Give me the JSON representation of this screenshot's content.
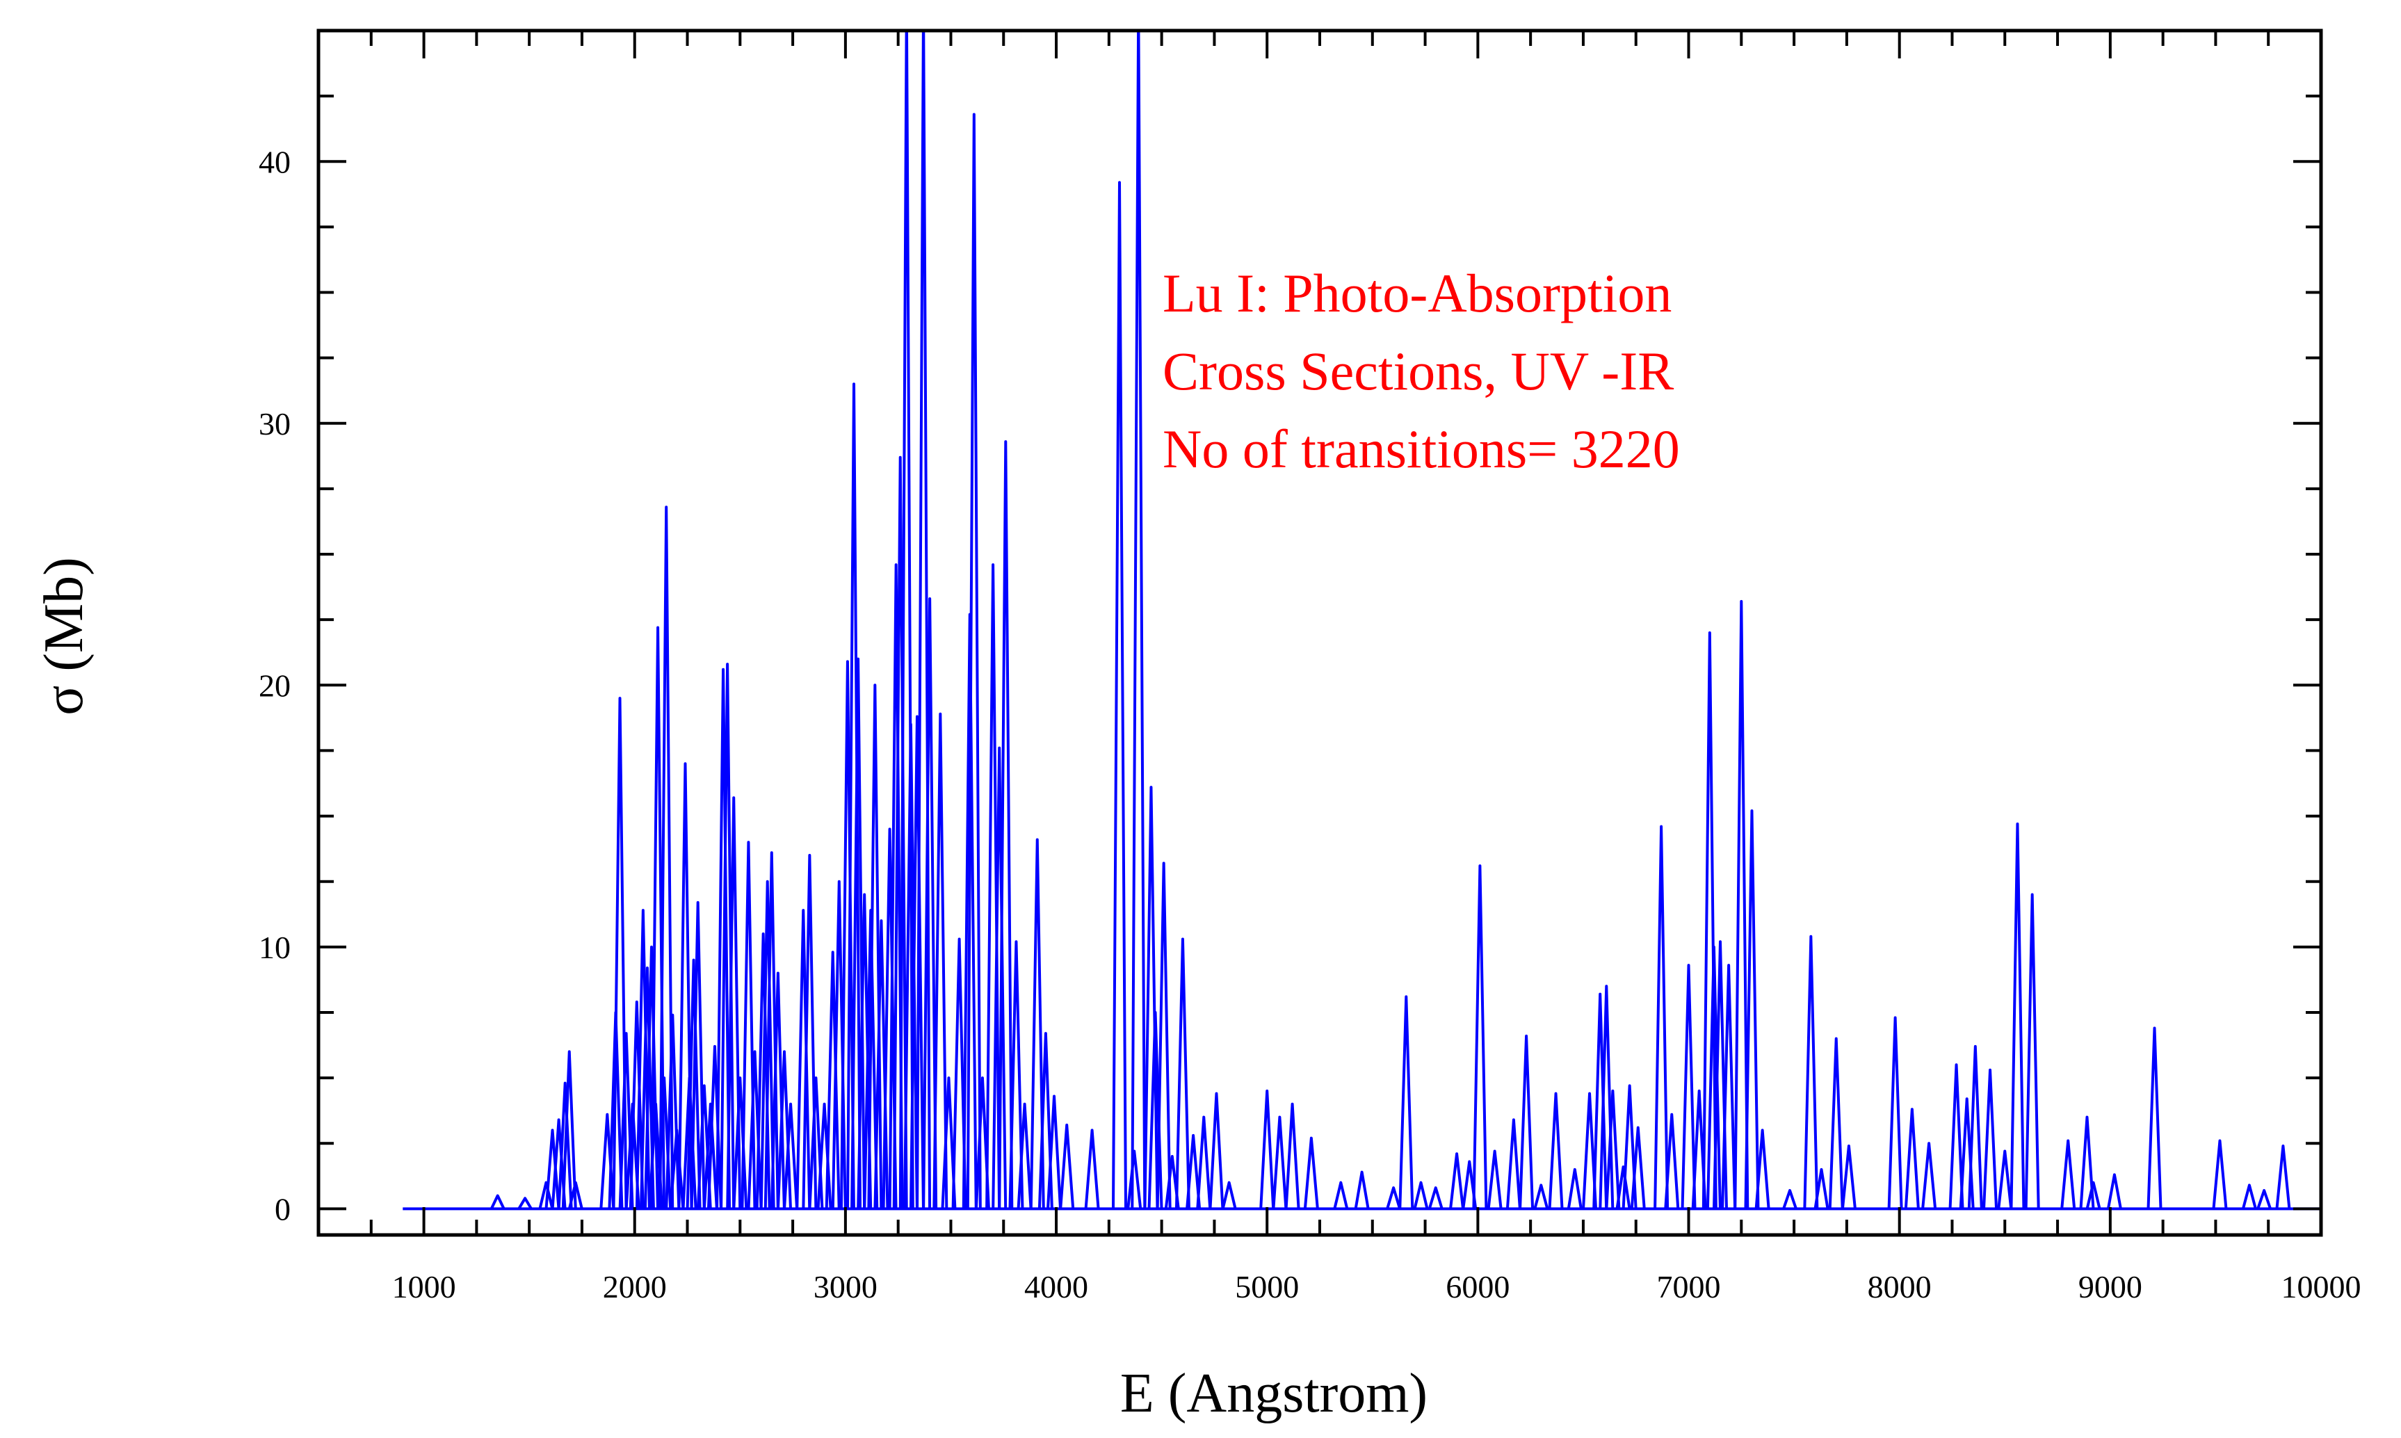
{
  "chart_data": {
    "type": "line",
    "title": "",
    "xlabel": "E (Angstrom)",
    "ylabel": "σ (Mb)",
    "xlim": [
      500,
      10000
    ],
    "ylim": [
      -1,
      45
    ],
    "x_ticks": [
      1000,
      2000,
      3000,
      4000,
      5000,
      6000,
      7000,
      8000,
      9000,
      10000
    ],
    "y_ticks": [
      0,
      10,
      20,
      30,
      40
    ],
    "grid": false,
    "legend": "none",
    "line_color": "#0000ff",
    "annotation_color": "#ff0000",
    "annotation": [
      "Lu I: Photo-Absorption",
      "Cross Sections, UV -IR",
      "No of transitions= 3220"
    ],
    "series": [
      {
        "peaks": [
          [
            1350,
            0.5
          ],
          [
            1480,
            0.4
          ],
          [
            1580,
            1.0
          ],
          [
            1610,
            3.0
          ],
          [
            1640,
            3.4
          ],
          [
            1670,
            4.8
          ],
          [
            1690,
            6.0
          ],
          [
            1720,
            1.0
          ],
          [
            1870,
            3.6
          ],
          [
            1910,
            7.5
          ],
          [
            1930,
            19.5
          ],
          [
            1960,
            6.7
          ],
          [
            1990,
            4.0
          ],
          [
            2010,
            7.9
          ],
          [
            2040,
            11.4
          ],
          [
            2060,
            9.2
          ],
          [
            2080,
            10.0
          ],
          [
            2100,
            4.0
          ],
          [
            2110,
            22.2
          ],
          [
            2140,
            5.0
          ],
          [
            2150,
            26.8
          ],
          [
            2180,
            7.4
          ],
          [
            2200,
            3.0
          ],
          [
            2240,
            17.0
          ],
          [
            2260,
            5.0
          ],
          [
            2280,
            9.5
          ],
          [
            2300,
            11.7
          ],
          [
            2330,
            4.7
          ],
          [
            2360,
            4.0
          ],
          [
            2380,
            6.2
          ],
          [
            2420,
            20.6
          ],
          [
            2440,
            20.8
          ],
          [
            2470,
            15.7
          ],
          [
            2500,
            5.0
          ],
          [
            2540,
            14.0
          ],
          [
            2570,
            6.0
          ],
          [
            2610,
            10.5
          ],
          [
            2630,
            12.5
          ],
          [
            2650,
            13.6
          ],
          [
            2680,
            9.0
          ],
          [
            2710,
            6.0
          ],
          [
            2740,
            4.0
          ],
          [
            2800,
            11.4
          ],
          [
            2830,
            13.5
          ],
          [
            2860,
            5.0
          ],
          [
            2900,
            4.0
          ],
          [
            2940,
            9.8
          ],
          [
            2970,
            12.5
          ],
          [
            3010,
            20.9
          ],
          [
            3040,
            31.5
          ],
          [
            3060,
            21.0
          ],
          [
            3090,
            12.0
          ],
          [
            3120,
            11.4
          ],
          [
            3140,
            20.0
          ],
          [
            3170,
            11.0
          ],
          [
            3210,
            14.5
          ],
          [
            3240,
            24.6
          ],
          [
            3260,
            28.7
          ],
          [
            3290,
            46
          ],
          [
            3310,
            18.5
          ],
          [
            3340,
            18.8
          ],
          [
            3370,
            46
          ],
          [
            3400,
            23.3
          ],
          [
            3450,
            18.9
          ],
          [
            3490,
            5.0
          ],
          [
            3540,
            10.3
          ],
          [
            3590,
            22.7
          ],
          [
            3610,
            41.8
          ],
          [
            3650,
            5.0
          ],
          [
            3700,
            24.6
          ],
          [
            3730,
            17.6
          ],
          [
            3760,
            29.3
          ],
          [
            3810,
            10.2
          ],
          [
            3850,
            4.0
          ],
          [
            3910,
            14.1
          ],
          [
            3950,
            6.7
          ],
          [
            3990,
            4.3
          ],
          [
            4050,
            3.2
          ],
          [
            4170,
            3.0
          ],
          [
            4300,
            39.2
          ],
          [
            4370,
            2.2
          ],
          [
            4390,
            46
          ],
          [
            4450,
            16.1
          ],
          [
            4470,
            7.5
          ],
          [
            4510,
            13.2
          ],
          [
            4550,
            2.0
          ],
          [
            4600,
            10.3
          ],
          [
            4650,
            2.8
          ],
          [
            4700,
            3.5
          ],
          [
            4760,
            4.4
          ],
          [
            4820,
            1.0
          ],
          [
            5000,
            4.5
          ],
          [
            5060,
            3.5
          ],
          [
            5120,
            4.0
          ],
          [
            5210,
            2.7
          ],
          [
            5350,
            1.0
          ],
          [
            5450,
            1.4
          ],
          [
            5600,
            0.8
          ],
          [
            5660,
            8.1
          ],
          [
            5730,
            1.0
          ],
          [
            5800,
            0.8
          ],
          [
            5900,
            2.1
          ],
          [
            5960,
            1.8
          ],
          [
            6010,
            13.1
          ],
          [
            6080,
            2.2
          ],
          [
            6170,
            3.4
          ],
          [
            6230,
            6.6
          ],
          [
            6300,
            0.9
          ],
          [
            6370,
            4.4
          ],
          [
            6460,
            1.5
          ],
          [
            6530,
            4.4
          ],
          [
            6580,
            8.2
          ],
          [
            6610,
            8.5
          ],
          [
            6640,
            4.5
          ],
          [
            6690,
            1.6
          ],
          [
            6720,
            4.7
          ],
          [
            6760,
            3.1
          ],
          [
            6870,
            14.6
          ],
          [
            6920,
            3.6
          ],
          [
            7000,
            9.3
          ],
          [
            7050,
            4.5
          ],
          [
            7100,
            22.0
          ],
          [
            7120,
            10.0
          ],
          [
            7150,
            10.2
          ],
          [
            7190,
            9.3
          ],
          [
            7250,
            23.2
          ],
          [
            7300,
            15.2
          ],
          [
            7350,
            3.0
          ],
          [
            7480,
            0.7
          ],
          [
            7580,
            10.4
          ],
          [
            7630,
            1.5
          ],
          [
            7700,
            6.5
          ],
          [
            7760,
            2.4
          ],
          [
            7980,
            7.3
          ],
          [
            8060,
            3.8
          ],
          [
            8140,
            2.5
          ],
          [
            8270,
            5.5
          ],
          [
            8320,
            4.2
          ],
          [
            8360,
            6.2
          ],
          [
            8430,
            5.3
          ],
          [
            8500,
            2.2
          ],
          [
            8560,
            14.7
          ],
          [
            8630,
            12.0
          ],
          [
            8800,
            2.6
          ],
          [
            8890,
            3.5
          ],
          [
            8920,
            1.0
          ],
          [
            9020,
            1.3
          ],
          [
            9210,
            6.9
          ],
          [
            9520,
            2.6
          ],
          [
            9660,
            0.9
          ],
          [
            9730,
            0.7
          ],
          [
            9820,
            2.4
          ]
        ]
      }
    ]
  }
}
